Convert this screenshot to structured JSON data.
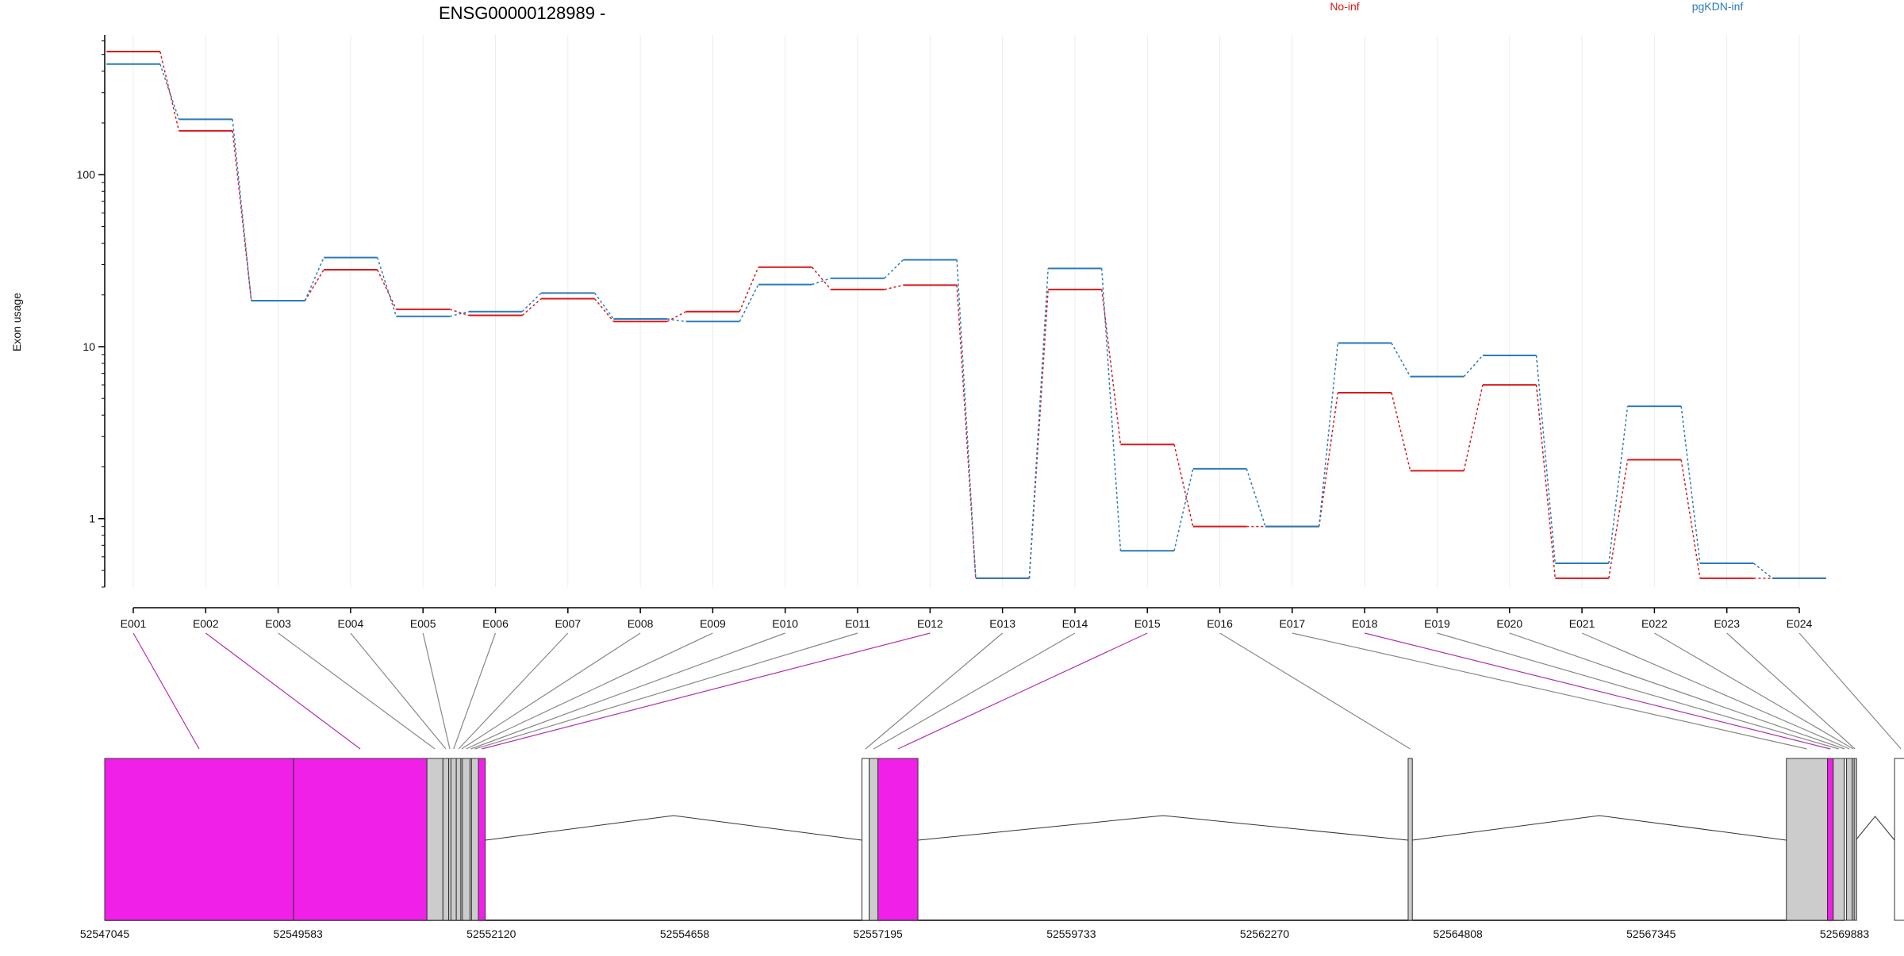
{
  "chart_data": {
    "type": "line",
    "title": "ENSG00000128989 -",
    "ylabel": "Exon usage",
    "yscale": "log",
    "ylim": [
      0.4,
      650
    ],
    "yticks": [
      1,
      10,
      100
    ],
    "ytick_labels": [
      "1",
      "10",
      "100"
    ],
    "grid": "vertical",
    "legend_placement": "top",
    "categories": [
      "E001",
      "E002",
      "E003",
      "E004",
      "E005",
      "E006",
      "E007",
      "E008",
      "E009",
      "E010",
      "E011",
      "E012",
      "E013",
      "E014",
      "E015",
      "E016",
      "E017",
      "E018",
      "E019",
      "E020",
      "E021",
      "E022",
      "E023",
      "E024"
    ],
    "series": [
      {
        "name": "No-inf",
        "color": "#d7191c",
        "values": [
          520,
          180,
          18.5,
          28,
          16.5,
          15.2,
          19,
          14,
          16,
          29,
          21.5,
          22.8,
          0.45,
          21.5,
          2.7,
          0.9,
          0.9,
          5.4,
          1.9,
          6,
          0.45,
          2.2,
          0.45,
          0.45
        ]
      },
      {
        "name": "pgKDN-inf",
        "color": "#2b7bba",
        "values": [
          440,
          210,
          18.5,
          33,
          15,
          16,
          20.5,
          14.5,
          14,
          23,
          25,
          32,
          0.45,
          28.5,
          0.65,
          1.95,
          0.9,
          10.5,
          6.7,
          8.9,
          0.55,
          4.5,
          0.55,
          0.45
        ]
      }
    ],
    "gene_model": {
      "coord_range": [
        52547045,
        52569883
      ],
      "coord_ticks": [
        52547045,
        52549583,
        52552120,
        52554658,
        52557195,
        52559733,
        52562270,
        52564808,
        52567345,
        52569883
      ],
      "exons": [
        {
          "id": "E001",
          "start": 52547045,
          "end": 52549523,
          "color": "#f020e8"
        },
        {
          "id": "E002",
          "start": 52549523,
          "end": 52551275,
          "color": "#f020e8"
        },
        {
          "id": "E003",
          "start": 52551275,
          "end": 52551485,
          "color": "#cccccc"
        },
        {
          "id": "E004",
          "start": 52551485,
          "end": 52551560,
          "color": "#cccccc"
        },
        {
          "id": "E005",
          "start": 52551560,
          "end": 52551590,
          "color": "#cccccc"
        },
        {
          "id": "E006",
          "start": 52551590,
          "end": 52551660,
          "color": "#cccccc"
        },
        {
          "id": "E007",
          "start": 52551660,
          "end": 52551720,
          "color": "#cccccc"
        },
        {
          "id": "E008",
          "start": 52551720,
          "end": 52551740,
          "color": "#cccccc"
        },
        {
          "id": "E009",
          "start": 52551740,
          "end": 52551840,
          "color": "#cccccc"
        },
        {
          "id": "E010",
          "start": 52551840,
          "end": 52551860,
          "color": "#cccccc"
        },
        {
          "id": "E011",
          "start": 52551860,
          "end": 52551950,
          "color": "#cccccc"
        },
        {
          "id": "E012",
          "start": 52551950,
          "end": 52552040,
          "color": "#f020e8"
        },
        {
          "id": "E013",
          "start": 52556985,
          "end": 52557080,
          "color": "#ffffff"
        },
        {
          "id": "E014",
          "start": 52557080,
          "end": 52557195,
          "color": "#cccccc"
        },
        {
          "id": "E015",
          "start": 52557195,
          "end": 52557720,
          "color": "#f020e8"
        },
        {
          "id": "E016",
          "start": 52564155,
          "end": 52564210,
          "color": "#cccccc"
        },
        {
          "id": "E017",
          "start": 52569120,
          "end": 52569660,
          "color": "#cccccc"
        },
        {
          "id": "E018",
          "start": 52569660,
          "end": 52569735,
          "color": "#f020e8"
        },
        {
          "id": "E019",
          "start": 52569735,
          "end": 52569880,
          "color": "#cccccc"
        },
        {
          "id": "E020",
          "start": 52569880,
          "end": 52569886,
          "color": "#ffffff"
        },
        {
          "id": "E021",
          "start": 52569910,
          "end": 52569985,
          "color": "#cccccc"
        },
        {
          "id": "E022",
          "start": 52569985,
          "end": 52570010,
          "color": "#cccccc"
        },
        {
          "id": "E023",
          "start": 52570010,
          "end": 52570030,
          "color": "#cccccc"
        },
        {
          "id": "E024",
          "start": 52570540,
          "end": 52570710,
          "color": "#ffffff"
        }
      ]
    }
  }
}
